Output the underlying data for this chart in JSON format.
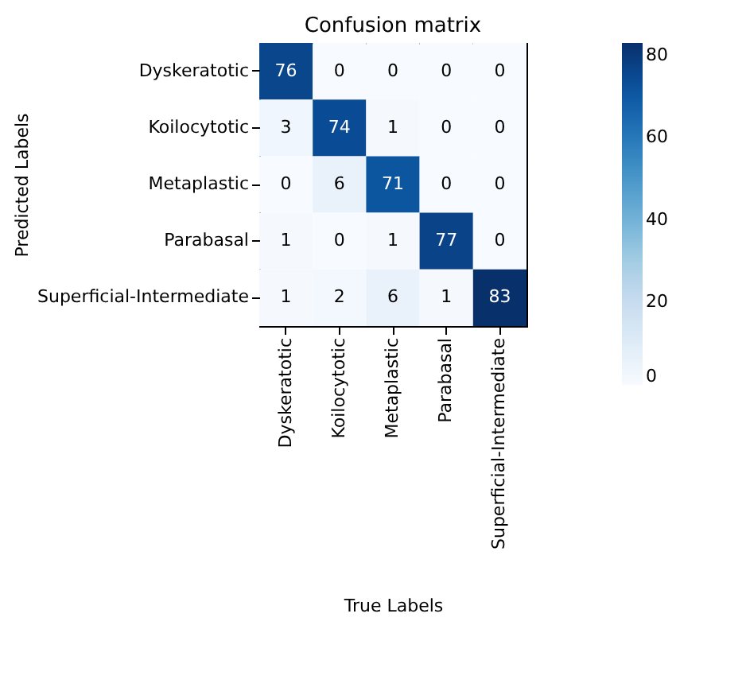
{
  "chart_data": {
    "type": "heatmap",
    "title": "Confusion matrix",
    "xlabel": "True Labels",
    "ylabel": "Predicted Labels",
    "categories": [
      "Dyskeratotic",
      "Koilocytotic",
      "Metaplastic",
      "Parabasal",
      "Superficial-Intermediate"
    ],
    "y_categories": [
      "Dyskeratotic",
      "Koilocytotic",
      "Metaplastic",
      "Parabasal",
      "Superficial-Intermediate"
    ],
    "cells": [
      [
        76,
        0,
        0,
        0,
        0
      ],
      [
        3,
        74,
        1,
        0,
        0
      ],
      [
        0,
        6,
        71,
        0,
        0
      ],
      [
        1,
        0,
        1,
        77,
        0
      ],
      [
        1,
        2,
        6,
        1,
        83
      ]
    ],
    "clim": [
      0,
      83
    ],
    "cticks": [
      0,
      20,
      40,
      60,
      80
    ],
    "data_labels": true
  }
}
